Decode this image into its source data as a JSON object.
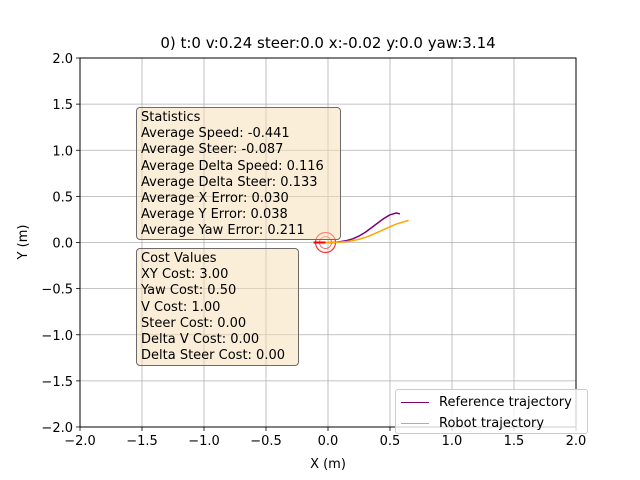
{
  "chart_data": {
    "type": "line",
    "title": "0) t:0 v:0.24 steer:0.0 x:-0.02 y:0.0 yaw:3.14",
    "xlabel": "X (m)",
    "ylabel": "Y (m)",
    "xlim": [
      -2.0,
      2.0
    ],
    "ylim": [
      -2.0,
      2.0
    ],
    "grid": true,
    "x_ticks": [
      "−2.0",
      "−1.5",
      "−1.0",
      "−0.5",
      "0.0",
      "0.5",
      "1.0",
      "1.5",
      "2.0"
    ],
    "y_ticks": [
      "−2.0",
      "−1.5",
      "−1.0",
      "−0.5",
      "0.0",
      "0.5",
      "1.0",
      "1.5",
      "2.0"
    ],
    "legend_position": "bottom-right",
    "series": [
      {
        "name": "Reference trajectory",
        "color": "#800080",
        "x": [
          0.0,
          0.05,
          0.1,
          0.15,
          0.2,
          0.25,
          0.3,
          0.35,
          0.4,
          0.45,
          0.5,
          0.55,
          0.58
        ],
        "y": [
          0.0,
          0.0,
          0.01,
          0.02,
          0.04,
          0.07,
          0.11,
          0.16,
          0.21,
          0.26,
          0.3,
          0.32,
          0.31
        ]
      },
      {
        "name": "Robot trajectory",
        "color": "#FFA500",
        "x": [
          -0.02,
          0.05,
          0.1,
          0.15,
          0.2,
          0.25,
          0.3,
          0.35,
          0.4,
          0.45,
          0.5,
          0.55,
          0.6,
          0.65
        ],
        "y": [
          0.0,
          0.0,
          0.005,
          0.01,
          0.02,
          0.035,
          0.055,
          0.08,
          0.11,
          0.14,
          0.17,
          0.2,
          0.22,
          0.24
        ]
      }
    ],
    "robot_marker": {
      "x": -0.02,
      "y": 0.0,
      "yaw": 3.14,
      "color": "#ff0000"
    },
    "statistics": {
      "title": "Statistics",
      "lines": [
        "Average Speed: -0.441",
        "Average Steer: -0.087",
        "Average Delta Speed: 0.116",
        "Average Delta Steer: 0.133",
        "Average X Error: 0.030",
        "Average Y Error: 0.038",
        "Average Yaw Error: 0.211"
      ]
    },
    "cost_values": {
      "title": "Cost Values",
      "lines": [
        "XY Cost: 3.00",
        "Yaw Cost: 0.50",
        "V Cost: 1.00",
        "Steer Cost: 0.00",
        "Delta V Cost: 0.00",
        "Delta Steer Cost: 0.00"
      ]
    }
  }
}
